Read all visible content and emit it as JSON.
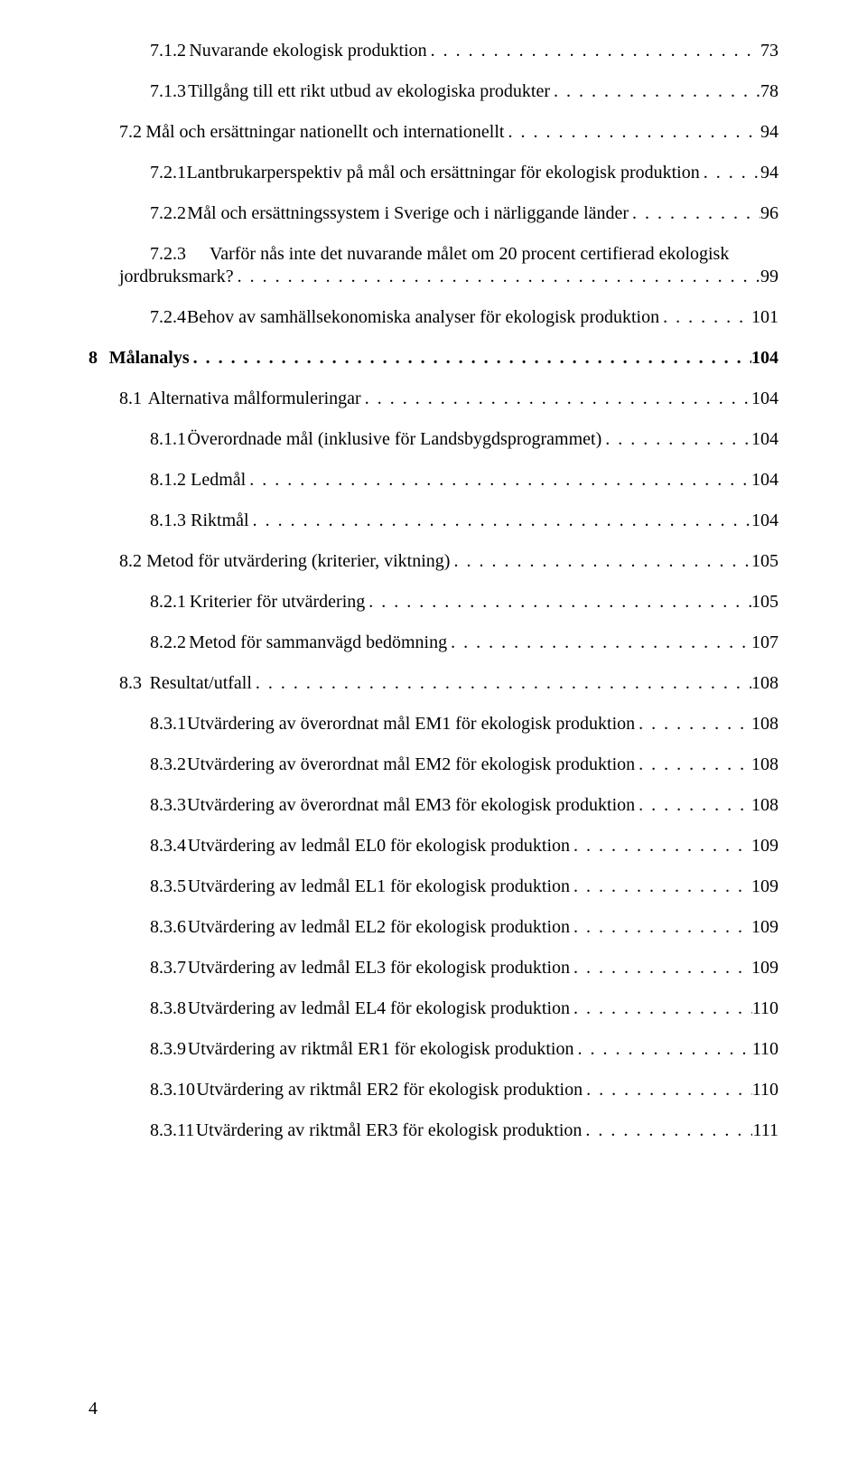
{
  "page": {
    "footer_page_number": "4"
  },
  "toc": {
    "entries": [
      {
        "level": 2,
        "bold": false,
        "num": "7.1.2",
        "title": "Nuvarande ekologisk produktion",
        "page": "73",
        "indentClass": "ind-l2",
        "spClass": "sp-a"
      },
      {
        "level": 2,
        "bold": false,
        "num": "7.1.3",
        "title": "Tillgång till ett rikt utbud av ekologiska produkter",
        "page": "78",
        "indentClass": "ind-l2",
        "spClass": "sp-a"
      },
      {
        "level": 1,
        "bold": false,
        "num": "7.2",
        "title": "Mål och ersättningar nationellt och internationellt",
        "page": "94",
        "indentClass": "ind-l1",
        "spClass": "sp-b"
      },
      {
        "level": 2,
        "bold": false,
        "num": "7.2.1",
        "title": "Lantbrukarperspektiv på mål och ersättningar för ekologisk produktion",
        "page": "94",
        "indentClass": "ind-l2",
        "spClass": "sp-a"
      },
      {
        "level": 2,
        "bold": false,
        "num": "7.2.2",
        "title": "Mål och ersättningssystem i Sverige och i närliggande länder",
        "page": "96",
        "indentClass": "ind-l2",
        "spClass": "sp-a"
      },
      {
        "level": 2,
        "bold": false,
        "num": "7.2.3",
        "title_line1": "Varför nås inte det nuvarande målet om 20 procent certifierad ekologisk",
        "title_line2": "jordbruksmark?",
        "page": "99",
        "indentClass": "ind-l2",
        "spClass": "sp-a",
        "multiline": true,
        "line2IndentClass": "ind-l1"
      },
      {
        "level": 2,
        "bold": false,
        "num": "7.2.4",
        "title": "Behov av samhällsekonomiska analyser för ekologisk produktion",
        "page": "101",
        "indentClass": "ind-l2",
        "spClass": "sp-a"
      },
      {
        "level": 0,
        "bold": true,
        "num": "8",
        "title": "Målanalys",
        "page": "104",
        "indentClass": "ind-chapter-num",
        "spClass": "sp-d"
      },
      {
        "level": 1,
        "bold": false,
        "num": "8.1",
        "title": "Alternativa målformuleringar",
        "page": "104",
        "indentClass": "ind-l1",
        "spClass": "sp-b"
      },
      {
        "level": 2,
        "bold": false,
        "num": "8.1.1",
        "title": "Överordnade mål (inklusive för Landsbygdsprogrammet)",
        "page": "104",
        "indentClass": "ind-l2",
        "spClass": "sp-a"
      },
      {
        "level": 2,
        "bold": false,
        "num": "8.1.2",
        "title": "Ledmål",
        "page": "104",
        "indentClass": "ind-l2",
        "spClass": "sp-a"
      },
      {
        "level": 2,
        "bold": false,
        "num": "8.1.3",
        "title": "Riktmål",
        "page": "104",
        "indentClass": "ind-l2",
        "spClass": "sp-a"
      },
      {
        "level": 1,
        "bold": false,
        "num": "8.2",
        "title": "Metod för utvärdering (kriterier, viktning)",
        "page": "105",
        "indentClass": "ind-l1",
        "spClass": "sp-b"
      },
      {
        "level": 2,
        "bold": false,
        "num": "8.2.1",
        "title": "Kriterier för utvärdering",
        "page": "105",
        "indentClass": "ind-l2",
        "spClass": "sp-a"
      },
      {
        "level": 2,
        "bold": false,
        "num": "8.2.2",
        "title": "Metod för sammanvägd bedömning",
        "page": "107",
        "indentClass": "ind-l2",
        "spClass": "sp-a"
      },
      {
        "level": 1,
        "bold": false,
        "num": "8.3",
        "title": "Resultat/utfall",
        "page": "108",
        "indentClass": "ind-l1",
        "spClass": "sp-b"
      },
      {
        "level": 2,
        "bold": false,
        "num": "8.3.1",
        "title": "Utvärdering av överordnat mål EM1 för ekologisk produktion",
        "page": "108",
        "indentClass": "ind-l2",
        "spClass": "sp-a"
      },
      {
        "level": 2,
        "bold": false,
        "num": "8.3.2",
        "title": "Utvärdering av överordnat mål EM2 för ekologisk produktion",
        "page": "108",
        "indentClass": "ind-l2",
        "spClass": "sp-a"
      },
      {
        "level": 2,
        "bold": false,
        "num": "8.3.3",
        "title": "Utvärdering av överordnat mål EM3 för ekologisk produktion",
        "page": "108",
        "indentClass": "ind-l2",
        "spClass": "sp-a"
      },
      {
        "level": 2,
        "bold": false,
        "num": "8.3.4",
        "title": "Utvärdering av ledmål EL0 för ekologisk produktion",
        "page": "109",
        "indentClass": "ind-l2",
        "spClass": "sp-a"
      },
      {
        "level": 2,
        "bold": false,
        "num": "8.3.5",
        "title": "Utvärdering av ledmål EL1 för ekologisk produktion",
        "page": "109",
        "indentClass": "ind-l2",
        "spClass": "sp-a"
      },
      {
        "level": 2,
        "bold": false,
        "num": "8.3.6",
        "title": "Utvärdering av ledmål EL2 för ekologisk produktion",
        "page": "109",
        "indentClass": "ind-l2",
        "spClass": "sp-a"
      },
      {
        "level": 2,
        "bold": false,
        "num": "8.3.7",
        "title": "Utvärdering av ledmål EL3 för ekologisk produktion",
        "page": "109",
        "indentClass": "ind-l2",
        "spClass": "sp-a"
      },
      {
        "level": 2,
        "bold": false,
        "num": "8.3.8",
        "title": "Utvärdering av ledmål EL4 för ekologisk produktion",
        "page": "110",
        "indentClass": "ind-l2",
        "spClass": "sp-a"
      },
      {
        "level": 2,
        "bold": false,
        "num": "8.3.9",
        "title": "Utvärdering av riktmål ER1 för ekologisk produktion",
        "page": "110",
        "indentClass": "ind-l2",
        "spClass": "sp-a"
      },
      {
        "level": 2,
        "bold": false,
        "num": "8.3.10",
        "title": "Utvärdering av riktmål ER2 för ekologisk produktion",
        "page": "110",
        "indentClass": "ind-l2",
        "spClass": "sp-e"
      },
      {
        "level": 2,
        "bold": false,
        "num": "8.3.11",
        "title": "Utvärdering av riktmål ER3 för ekologisk produktion",
        "page": "111",
        "indentClass": "ind-l2",
        "spClass": "sp-e"
      }
    ]
  },
  "style": {
    "font_family": "Times New Roman",
    "font_size_pt": 15,
    "text_color": "#000000",
    "background_color": "#ffffff",
    "dot_leader_char": "."
  }
}
